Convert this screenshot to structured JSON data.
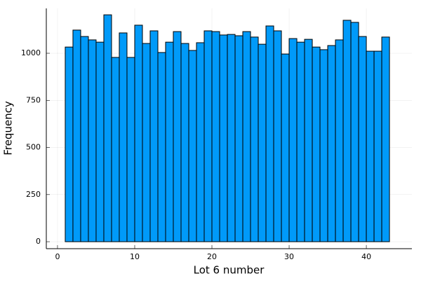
{
  "chart_data": {
    "type": "histogram",
    "xlabel": "Lot 6 number",
    "ylabel": "Frequency",
    "bins": [
      1,
      2,
      3,
      4,
      5,
      6,
      7,
      8,
      9,
      10,
      11,
      12,
      13,
      14,
      15,
      16,
      17,
      18,
      19,
      20,
      21,
      22,
      23,
      24,
      25,
      26,
      27,
      28,
      29,
      30,
      31,
      32,
      33,
      34,
      35,
      36,
      37,
      38,
      39,
      40,
      41,
      42,
      43
    ],
    "values": [
      1033,
      1123,
      1089,
      1071,
      1059,
      1204,
      978,
      1108,
      978,
      1149,
      1052,
      1119,
      1004,
      1059,
      1115,
      1052,
      1015,
      1056,
      1119,
      1115,
      1097,
      1100,
      1093,
      1115,
      1086,
      1048,
      1145,
      1119,
      996,
      1078,
      1059,
      1074,
      1033,
      1019,
      1041,
      1071,
      1175,
      1164,
      1089,
      1011,
      1011,
      1086
    ],
    "color": "#009af9",
    "xlim": [
      -1.45,
      45.9
    ],
    "ylim": [
      -37,
      1238
    ],
    "xticks": [
      0,
      10,
      20,
      30,
      40
    ],
    "yticks": [
      0,
      250,
      500,
      750,
      1000
    ],
    "grid": true
  }
}
